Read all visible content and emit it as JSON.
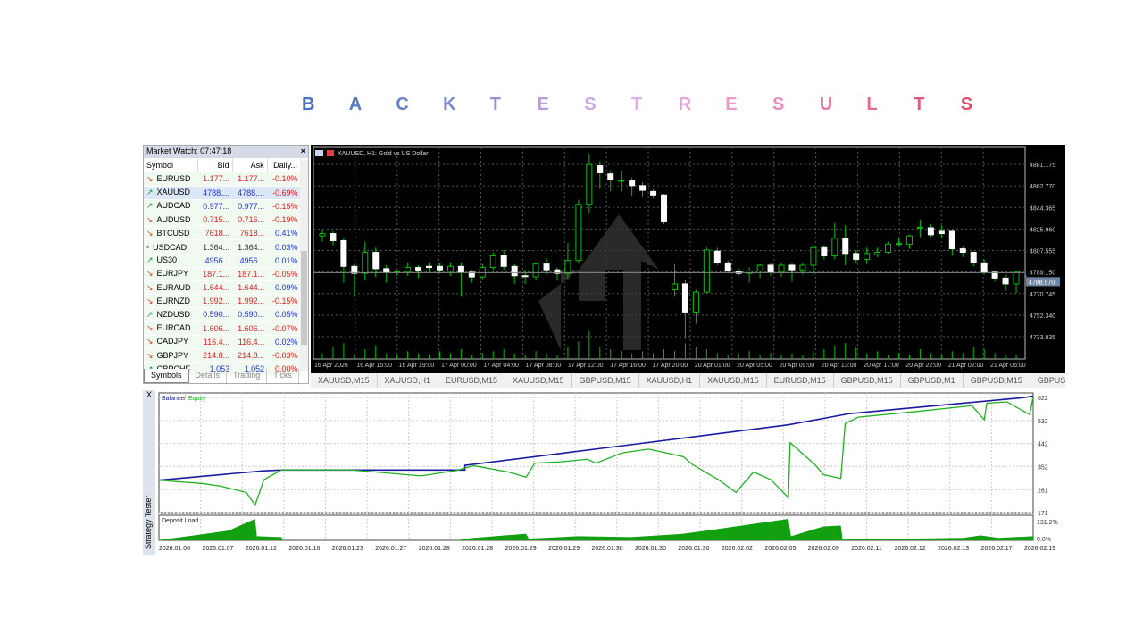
{
  "title": {
    "letters": [
      "B",
      "A",
      "C",
      "K",
      "T",
      "E",
      "S",
      "T",
      "R",
      "E",
      "S",
      "U",
      "L",
      "T",
      "S"
    ],
    "colors": [
      "#4a6fc0",
      "#5778c6",
      "#6a80cc",
      "#7a86d0",
      "#9a90d8",
      "#b69ce0",
      "#cca8e6",
      "#deb0ea",
      "#e4a4d8",
      "#e89ac8",
      "#e88eb8",
      "#e67ba0",
      "#e36a8e",
      "#e15a7c",
      "#e04c6c"
    ]
  },
  "market_watch": {
    "title": "Market Watch: 07:47:18",
    "close": "×",
    "columns": [
      "Symbol",
      "Bid",
      "Ask",
      "Daily..."
    ],
    "rows": [
      {
        "dir": "down",
        "symbol": "EURUSD",
        "bid": "1.177...",
        "ask": "1.177...",
        "daily": "-0.10%",
        "pc": "red",
        "dc": "red"
      },
      {
        "dir": "up",
        "symbol": "XAUUSD",
        "bid": "4788....",
        "ask": "4788....",
        "daily": "-0.69%",
        "pc": "blue",
        "dc": "red",
        "selected": true
      },
      {
        "dir": "up",
        "symbol": "AUDCAD",
        "bid": "0.977...",
        "ask": "0.977...",
        "daily": "-0.15%",
        "pc": "blue",
        "dc": "red"
      },
      {
        "dir": "down",
        "symbol": "AUDUSD",
        "bid": "0.715...",
        "ask": "0.716...",
        "daily": "-0.19%",
        "pc": "red",
        "dc": "red"
      },
      {
        "dir": "down",
        "symbol": "BTCUSD",
        "bid": "7618...",
        "ask": "7618...",
        "daily": "0.41%",
        "pc": "red",
        "dc": "blue"
      },
      {
        "dir": "none",
        "symbol": "USDCAD",
        "bid": "1.364...",
        "ask": "1.364...",
        "daily": "0.03%",
        "pc": "dark",
        "dc": "blue"
      },
      {
        "dir": "up",
        "symbol": "US30",
        "bid": "4956...",
        "ask": "4956...",
        "daily": "0.01%",
        "pc": "blue",
        "dc": "blue"
      },
      {
        "dir": "down",
        "symbol": "EURJPY",
        "bid": "187.1...",
        "ask": "187.1...",
        "daily": "-0.05%",
        "pc": "red",
        "dc": "red"
      },
      {
        "dir": "down",
        "symbol": "EURAUD",
        "bid": "1.644...",
        "ask": "1.644...",
        "daily": "0.09%",
        "pc": "red",
        "dc": "blue"
      },
      {
        "dir": "down",
        "symbol": "EURNZD",
        "bid": "1.992...",
        "ask": "1.992...",
        "daily": "-0.15%",
        "pc": "red",
        "dc": "red"
      },
      {
        "dir": "up",
        "symbol": "NZDUSD",
        "bid": "0.590...",
        "ask": "0.590...",
        "daily": "0.05%",
        "pc": "blue",
        "dc": "blue"
      },
      {
        "dir": "down",
        "symbol": "EURCAD",
        "bid": "1.606...",
        "ask": "1.606...",
        "daily": "-0.07%",
        "pc": "red",
        "dc": "red"
      },
      {
        "dir": "down",
        "symbol": "CADJPY",
        "bid": "116.4...",
        "ask": "116.4...",
        "daily": "0.02%",
        "pc": "red",
        "dc": "blue"
      },
      {
        "dir": "down",
        "symbol": "GBPJPY",
        "bid": "214.8...",
        "ask": "214.8...",
        "daily": "-0.03%",
        "pc": "red",
        "dc": "red"
      },
      {
        "dir": "up",
        "symbol": "GBPCHF",
        "bid": "1.052",
        "ask": "1.052",
        "daily": "0.00%",
        "pc": "blue",
        "dc": "red"
      }
    ],
    "tabs": [
      "Symbols",
      "Details",
      "Trading",
      "Ticks"
    ]
  },
  "chart_data": [
    {
      "type": "candlestick",
      "title": "XAUUSD, H1:  Gold vs US Dollar",
      "ylim": [
        4722,
        4893
      ],
      "grid": true,
      "y_ticks": [
        "4881.175",
        "4862.770",
        "4844.365",
        "4825.960",
        "4807.555",
        "4789.150",
        "4770.745",
        "4752.340",
        "4733.935"
      ],
      "y_tick_values": [
        4881.175,
        4862.77,
        4844.365,
        4825.96,
        4807.555,
        4789.15,
        4770.745,
        4752.34,
        4733.935
      ],
      "current_price": "4788.570",
      "current_value": 4788.57,
      "x_ticks": [
        "16 Apr 2026",
        "16 Apr 15:00",
        "16 Apr 19:00",
        "17 Apr 00:00",
        "17 Apr 04:00",
        "17 Apr 08:00",
        "17 Apr 12:00",
        "17 Apr 16:00",
        "17 Apr 20:00",
        "20 Apr 01:00",
        "20 Apr 05:00",
        "20 Apr 09:00",
        "20 Apr 13:00",
        "20 Apr 17:00",
        "20 Apr 22:00",
        "21 Apr 02:00",
        "21 Apr 06:00"
      ],
      "ohlc": [
        [
          4820,
          4825,
          4815,
          4822
        ],
        [
          4822,
          4824,
          4812,
          4816
        ],
        [
          4816,
          4818,
          4780,
          4794
        ],
        [
          4794,
          4796,
          4768,
          4788
        ],
        [
          4788,
          4815,
          4782,
          4806
        ],
        [
          4806,
          4810,
          4785,
          4792
        ],
        [
          4792,
          4795,
          4780,
          4789
        ],
        [
          4789,
          4791,
          4786,
          4789.5
        ],
        [
          4789,
          4797,
          4786,
          4793
        ],
        [
          4793,
          4795,
          4784,
          4790
        ],
        [
          4794,
          4797,
          4789,
          4793
        ],
        [
          4794,
          4797,
          4788,
          4791
        ],
        [
          4790,
          4797,
          4786,
          4794
        ],
        [
          4794,
          4797,
          4768,
          4789
        ],
        [
          4789,
          4791,
          4780,
          4785
        ],
        [
          4785,
          4796,
          4783,
          4793
        ],
        [
          4793,
          4806,
          4791,
          4803
        ],
        [
          4803,
          4808,
          4791,
          4794
        ],
        [
          4794,
          4796,
          4779,
          4786
        ],
        [
          4786,
          4791,
          4779,
          4785.5
        ],
        [
          4785,
          4797,
          4782,
          4796
        ],
        [
          4796,
          4801,
          4787,
          4791
        ],
        [
          4791,
          4793,
          4782,
          4788
        ],
        [
          4788,
          4814,
          4783,
          4799
        ],
        [
          4799,
          4851,
          4797,
          4847
        ],
        [
          4847,
          4890,
          4839,
          4881
        ],
        [
          4880,
          4884,
          4860,
          4874
        ],
        [
          4873,
          4876,
          4858,
          4868
        ],
        [
          4867,
          4875,
          4858,
          4867.5
        ],
        [
          4867,
          4870,
          4854,
          4863
        ],
        [
          4863,
          4866,
          4853,
          4859
        ],
        [
          4858,
          4860,
          4852,
          4855
        ],
        [
          4855,
          4856,
          4830,
          4832
        ],
        [
          4774,
          4796,
          4768,
          4779
        ],
        [
          4779,
          4782,
          4732,
          4755
        ],
        [
          4755,
          4774,
          4745,
          4772
        ],
        [
          4772,
          4810,
          4771,
          4808
        ],
        [
          4807,
          4810,
          4795,
          4797
        ],
        [
          4797,
          4799,
          4788,
          4790
        ],
        [
          4790,
          4792,
          4786,
          4788
        ],
        [
          4788,
          4793,
          4780,
          4790
        ],
        [
          4790,
          4796,
          4784,
          4795
        ],
        [
          4795,
          4797,
          4786,
          4789
        ],
        [
          4789,
          4797,
          4785,
          4795
        ],
        [
          4795,
          4797,
          4781,
          4791
        ],
        [
          4791,
          4797,
          4787,
          4795
        ],
        [
          4795,
          4812,
          4787,
          4810
        ],
        [
          4810,
          4812,
          4800,
          4803
        ],
        [
          4803,
          4831,
          4800,
          4818
        ],
        [
          4818,
          4829,
          4795,
          4805
        ],
        [
          4805,
          4808,
          4797,
          4800
        ],
        [
          4800,
          4810,
          4796,
          4805
        ],
        [
          4804,
          4810,
          4802,
          4806
        ],
        [
          4806,
          4815,
          4805,
          4813
        ],
        [
          4813,
          4818,
          4811,
          4813.5
        ],
        [
          4813,
          4821,
          4809,
          4820
        ],
        [
          4827,
          4834,
          4819,
          4827.5
        ],
        [
          4827,
          4830,
          4819,
          4821
        ],
        [
          4824,
          4829,
          4818,
          4822
        ],
        [
          4824,
          4825,
          4803,
          4809
        ],
        [
          4809,
          4811,
          4802,
          4806
        ],
        [
          4806,
          4807,
          4794,
          4797
        ],
        [
          4797,
          4800,
          4787,
          4789
        ],
        [
          4789,
          4790,
          4781,
          4784
        ],
        [
          4784,
          4787,
          4773,
          4779
        ],
        [
          4779,
          4790,
          4771,
          4789
        ]
      ],
      "volume": [
        3,
        6,
        8,
        2,
        5,
        7,
        3,
        2,
        4,
        3,
        2,
        4,
        3,
        5,
        2,
        3,
        4,
        5,
        3,
        2,
        4,
        3,
        2,
        6,
        9,
        14,
        6,
        5,
        4,
        3,
        4,
        3,
        5,
        4,
        8,
        6,
        5,
        3,
        2,
        3,
        4,
        2,
        3,
        2,
        3,
        2,
        4,
        5,
        7,
        8,
        6,
        3,
        4,
        2,
        3,
        2,
        5,
        3,
        2,
        4,
        3,
        6,
        5,
        3,
        2,
        2
      ]
    },
    {
      "type": "line",
      "legend": [
        "Balance",
        "Equity"
      ],
      "legend_colors": [
        "#1a1aa0",
        "#20b020"
      ],
      "ylim": [
        171,
        640
      ],
      "y_ticks": [
        "622",
        "532",
        "442",
        "352",
        "261",
        "171"
      ],
      "y_tick_values": [
        622,
        532,
        442,
        352,
        261,
        171
      ],
      "x_ticks": [
        "2026.01.06",
        "2026.01.07",
        "2026.01.12",
        "2026.01.16",
        "2026.01.23",
        "2026.01.27",
        "2026.01.28",
        "2026.01.28",
        "2026.01.29",
        "2026.01.29",
        "2026.01.30",
        "2026.01.30",
        "2026.01.30",
        "2026.02.02",
        "2026.02.05",
        "2026.02.09",
        "2026.02.11",
        "2026.02.12",
        "2026.02.13",
        "2026.02.17",
        "2026.02.19"
      ],
      "series": [
        {
          "name": "Balance",
          "points": [
            [
              0,
              298
            ],
            [
              12,
              335
            ],
            [
              14,
              338
            ],
            [
              35,
              338
            ],
            [
              35,
              356
            ],
            [
              53,
              433
            ],
            [
              72,
              515
            ],
            [
              79,
              559
            ],
            [
              99,
              622
            ],
            [
              100,
              628
            ]
          ]
        },
        {
          "name": "Equity",
          "points": [
            [
              0,
              298
            ],
            [
              5,
              285
            ],
            [
              7,
              275
            ],
            [
              10,
              250
            ],
            [
              11,
              200
            ],
            [
              12,
              300
            ],
            [
              14,
              338
            ],
            [
              22,
              338
            ],
            [
              30,
              315
            ],
            [
              34,
              336
            ],
            [
              36,
              355
            ],
            [
              40,
              330
            ],
            [
              42,
              310
            ],
            [
              43,
              365
            ],
            [
              46,
              370
            ],
            [
              49,
              380
            ],
            [
              50,
              365
            ],
            [
              53,
              405
            ],
            [
              56,
              420
            ],
            [
              60,
              390
            ],
            [
              61,
              360
            ],
            [
              64,
              300
            ],
            [
              66,
              250
            ],
            [
              68,
              330
            ],
            [
              70,
              300
            ],
            [
              72,
              230
            ],
            [
              72.2,
              445
            ],
            [
              75,
              360
            ],
            [
              76,
              320
            ],
            [
              78,
              305
            ],
            [
              78.5,
              520
            ],
            [
              80,
              545
            ],
            [
              86,
              565
            ],
            [
              93,
              590
            ],
            [
              94.4,
              535
            ],
            [
              94.7,
              600
            ],
            [
              97,
              605
            ],
            [
              99.6,
              555
            ],
            [
              100,
              625
            ]
          ]
        }
      ]
    },
    {
      "type": "area",
      "title": "Deposit Load",
      "ylim": [
        0,
        131.2
      ],
      "y_ticks": [
        "131.2%",
        "0.0%"
      ],
      "points": [
        [
          0,
          2
        ],
        [
          4,
          30
        ],
        [
          8,
          60
        ],
        [
          11,
          131
        ],
        [
          11.2,
          25
        ],
        [
          14,
          20
        ],
        [
          14.2,
          1
        ],
        [
          34,
          1
        ],
        [
          36,
          15
        ],
        [
          42,
          40
        ],
        [
          42.3,
          10
        ],
        [
          48,
          25
        ],
        [
          54,
          20
        ],
        [
          60,
          40
        ],
        [
          64,
          70
        ],
        [
          72,
          131
        ],
        [
          72.3,
          25
        ],
        [
          76,
          85
        ],
        [
          78,
          90
        ],
        [
          78.2,
          5
        ],
        [
          85,
          10
        ],
        [
          92,
          15
        ],
        [
          94,
          30
        ],
        [
          96,
          15
        ],
        [
          100,
          25
        ]
      ]
    }
  ],
  "chart_tabs": [
    "XAUUSD,M15",
    "XAUUSD,H1",
    "EURUSD,M15",
    "XAUUSD,M15",
    "GBPUSD,M15",
    "XAUUSD,H1",
    "XAUUSD,M15",
    "EURUSD,M15",
    "GBPUSD,M15",
    "GBPUSD,M1",
    "GBPUSD,M15",
    "GBPUSD,I"
  ],
  "tester": {
    "close": "X",
    "vertical_label": "Strategy Tester"
  },
  "colors": {
    "bull": "#00c000",
    "bear": "#ffffff",
    "bg": "#000000",
    "grid": "#5a5a5a"
  }
}
